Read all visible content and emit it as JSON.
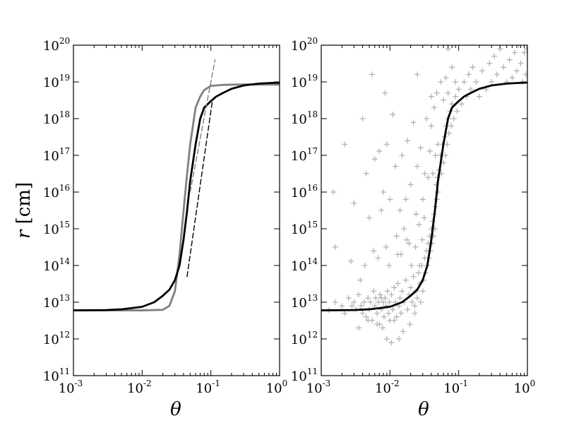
{
  "chart_data": [
    {
      "type": "line",
      "panel": "left",
      "xscale": "log",
      "yscale": "log",
      "xlim": [
        0.001,
        1
      ],
      "ylim": [
        100000000000.0,
        1e+20
      ],
      "xlabel": "θ",
      "ylabel": "r [cm]",
      "x_ticks": [
        {
          "base": "10",
          "exp": "-3"
        },
        {
          "base": "10",
          "exp": "-2"
        },
        {
          "base": "10",
          "exp": "-1"
        },
        {
          "base": "10",
          "exp": "0"
        }
      ],
      "y_ticks": [
        {
          "base": "10",
          "exp": "11"
        },
        {
          "base": "10",
          "exp": "12"
        },
        {
          "base": "10",
          "exp": "13"
        },
        {
          "base": "10",
          "exp": "14"
        },
        {
          "base": "10",
          "exp": "15"
        },
        {
          "base": "10",
          "exp": "16"
        },
        {
          "base": "10",
          "exp": "17"
        },
        {
          "base": "10",
          "exp": "18"
        },
        {
          "base": "10",
          "exp": "19"
        },
        {
          "base": "10",
          "exp": "20"
        }
      ],
      "series": [
        {
          "color": "#808080",
          "style": "solid",
          "x": [
            0.001,
            0.005,
            0.01,
            0.02,
            0.025,
            0.03,
            0.035,
            0.04,
            0.045,
            0.05,
            0.06,
            0.07,
            0.08,
            0.1,
            0.15,
            0.2,
            0.3,
            0.5,
            1.0
          ],
          "y": [
            6000000000000.0,
            6000000000000.0,
            6000000000000.0,
            6200000000000.0,
            8000000000000.0,
            20000000000000.0,
            200000000000000.0,
            3000000000000000.0,
            3e+16,
            2e+17,
            2e+18,
            4e+18,
            6e+18,
            7.8e+18,
            8.3e+18,
            8.4e+18,
            8.5e+18,
            8.5e+18,
            8.5e+18
          ]
        },
        {
          "color": "#000000",
          "style": "solid",
          "x": [
            0.001,
            0.003,
            0.005,
            0.01,
            0.015,
            0.02,
            0.025,
            0.03,
            0.035,
            0.04,
            0.045,
            0.05,
            0.06,
            0.07,
            0.08,
            0.1,
            0.12,
            0.15,
            0.2,
            0.3,
            0.5,
            0.7,
            1.0
          ],
          "y": [
            6000000000000.0,
            6100000000000.0,
            6400000000000.0,
            7500000000000.0,
            10000000000000.0,
            15000000000000.0,
            22000000000000.0,
            40000000000000.0,
            100000000000000.0,
            500000000000000.0,
            3000000000000000.0,
            2e+16,
            2e+17,
            1e+18,
            2e+18,
            3e+18,
            4e+18,
            5e+18,
            6.5e+18,
            8e+18,
            9e+18,
            9.3e+18,
            9.6e+18
          ]
        },
        {
          "color": "#808080",
          "style": "dashed",
          "x": [
            0.05,
            0.115
          ],
          "y": [
            1e+16,
            4e+19
          ]
        },
        {
          "color": "#000000",
          "style": "dashed",
          "x": [
            0.045,
            0.105
          ],
          "y": [
            50000000000000.0,
            3e+18
          ]
        }
      ]
    },
    {
      "type": "scatter",
      "panel": "right",
      "xscale": "log",
      "yscale": "log",
      "xlim": [
        0.001,
        1
      ],
      "ylim": [
        100000000000.0,
        1e+20
      ],
      "xlabel": "θ",
      "x_ticks": [
        {
          "base": "10",
          "exp": "-3"
        },
        {
          "base": "10",
          "exp": "-2"
        },
        {
          "base": "10",
          "exp": "-1"
        },
        {
          "base": "10",
          "exp": "0"
        }
      ],
      "scatter_color": "#b3b3b3",
      "scatter_marker": "+",
      "points": [
        [
          0.0013,
          6000000000000.0
        ],
        [
          0.0016,
          10000000000000.0
        ],
        [
          0.002,
          7900000000000.0
        ],
        [
          0.0022,
          5000000000000.0
        ],
        [
          0.0025,
          13000000000000.0
        ],
        [
          0.0028,
          7900000000000.0
        ],
        [
          0.003,
          10000000000000.0
        ],
        [
          0.0032,
          6300000000000.0
        ],
        [
          0.0035,
          16000000000000.0
        ],
        [
          0.0038,
          8000000000000.0
        ],
        [
          0.004,
          5000000000000.0
        ],
        [
          0.0042,
          10000000000000.0
        ],
        [
          0.0045,
          4000000000000.0
        ],
        [
          0.0048,
          13000000000000.0
        ],
        [
          0.005,
          6300000000000.0
        ],
        [
          0.0052,
          10000000000000.0
        ],
        [
          0.0055,
          3200000000000.0
        ],
        [
          0.0058,
          20000000000000.0
        ],
        [
          0.006,
          7900000000000.0
        ],
        [
          0.0062,
          13000000000000.0
        ],
        [
          0.0065,
          5000000000000.0
        ],
        [
          0.0068,
          10000000000000.0
        ],
        [
          0.007,
          2500000000000.0
        ],
        [
          0.0072,
          16000000000000.0
        ],
        [
          0.0075,
          6300000000000.0
        ],
        [
          0.0078,
          2000000000000.0
        ],
        [
          0.008,
          10000000000000.0
        ],
        [
          0.0082,
          4000000000000.0
        ],
        [
          0.0085,
          13000000000000.0
        ],
        [
          0.0088,
          7900000000000.0
        ],
        [
          0.009,
          1000000000000.0
        ],
        [
          0.0092,
          20000000000000.0
        ],
        [
          0.0095,
          5000000000000.0
        ],
        [
          0.0098,
          10000000000000.0
        ],
        [
          0.01,
          3200000000000.0
        ],
        [
          0.0105,
          16000000000000.0
        ],
        [
          0.011,
          6300000000000.0
        ],
        [
          0.0115,
          25000000000000.0
        ],
        [
          0.012,
          10000000000000.0
        ],
        [
          0.0125,
          4000000000000.0
        ],
        [
          0.013,
          32000000000000.0
        ],
        [
          0.0135,
          7900000000000.0
        ],
        [
          0.014,
          13000000000000.0
        ],
        [
          0.0145,
          5000000000000.0
        ],
        [
          0.015,
          20000000000000.0
        ],
        [
          0.016,
          10000000000000.0
        ],
        [
          0.017,
          40000000000000.0
        ],
        [
          0.018,
          6300000000000.0
        ],
        [
          0.019,
          16000000000000.0
        ],
        [
          0.02,
          25000000000000.0
        ],
        [
          0.021,
          10000000000000.0
        ],
        [
          0.022,
          50000000000000.0
        ],
        [
          0.023,
          7900000000000.0
        ],
        [
          0.024,
          20000000000000.0
        ],
        [
          0.025,
          13000000000000.0
        ],
        [
          0.026,
          63000000000000.0
        ],
        [
          0.027,
          32000000000000.0
        ],
        [
          0.028,
          10000000000000.0
        ],
        [
          0.029,
          100000000000000.0
        ],
        [
          0.03,
          20000000000000.0
        ],
        [
          0.031,
          40000000000000.0
        ],
        [
          0.032,
          160000000000000.0
        ],
        [
          0.033,
          63000000000000.0
        ],
        [
          0.034,
          250000000000000.0
        ],
        [
          0.035,
          100000000000000.0
        ],
        [
          0.036,
          400000000000000.0
        ],
        [
          0.037,
          160000000000000.0
        ],
        [
          0.038,
          630000000000000.0
        ],
        [
          0.039,
          250000000000000.0
        ],
        [
          0.04,
          1000000000000000.0
        ],
        [
          0.041,
          400000000000000.0
        ],
        [
          0.042,
          1600000000000000.0
        ],
        [
          0.043,
          630000000000000.0
        ],
        [
          0.044,
          2500000000000000.0
        ],
        [
          0.045,
          1000000000000000.0
        ],
        [
          0.046,
          4000000000000000.0
        ],
        [
          0.047,
          1.6e+16
        ],
        [
          0.048,
          6300000000000000.0
        ],
        [
          0.049,
          2.5e+16
        ],
        [
          0.05,
          1e+16
        ],
        [
          0.052,
          4e+16
        ],
        [
          0.054,
          1e+17
        ],
        [
          0.056,
          3.2e+16
        ],
        [
          0.058,
          2e+17
        ],
        [
          0.06,
          6.3e+16
        ],
        [
          0.062,
          3.2e+17
        ],
        [
          0.064,
          1e+17
        ],
        [
          0.066,
          6.3e+17
        ],
        [
          0.068,
          2e+17
        ],
        [
          0.07,
          1e+18
        ],
        [
          0.072,
          4e+17
        ],
        [
          0.075,
          1.6e+18
        ],
        [
          0.078,
          6.3e+17
        ],
        [
          0.08,
          2.5e+18
        ],
        [
          0.085,
          1e+18
        ],
        [
          0.09,
          4e+18
        ],
        [
          0.095,
          1.6e+18
        ],
        [
          0.1,
          6.3e+18
        ],
        [
          0.11,
          2.5e+18
        ],
        [
          0.12,
          1e+19
        ],
        [
          0.13,
          4e+18
        ],
        [
          0.14,
          1.6e+19
        ],
        [
          0.15,
          6.3e+18
        ],
        [
          0.16,
          2.5e+19
        ],
        [
          0.18,
          1e+19
        ],
        [
          0.2,
          4e+18
        ],
        [
          0.22,
          2e+19
        ],
        [
          0.25,
          6.3e+18
        ],
        [
          0.28,
          3.2e+19
        ],
        [
          0.3,
          1e+19
        ],
        [
          0.33,
          5e+19
        ],
        [
          0.36,
          1.6e+19
        ],
        [
          0.4,
          7.9e+19
        ],
        [
          0.45,
          2.5e+19
        ],
        [
          0.5,
          1e+19
        ],
        [
          0.55,
          4e+19
        ],
        [
          0.6,
          1.3e+19
        ],
        [
          0.65,
          6.3e+19
        ],
        [
          0.7,
          2e+19
        ],
        [
          0.75,
          1e+20
        ],
        [
          0.8,
          3.2e+19
        ],
        [
          0.85,
          1e+19
        ],
        [
          0.9,
          6.3e+19
        ],
        [
          0.95,
          1.6e+19
        ],
        [
          0.98,
          7.9e+19
        ],
        [
          0.0016,
          320000000000000.0
        ],
        [
          0.0015,
          1e+16
        ],
        [
          0.0022,
          2e+17
        ],
        [
          0.003,
          5000000000000000.0
        ],
        [
          0.004,
          1e+18
        ],
        [
          0.0045,
          3.2e+16
        ],
        [
          0.005,
          2000000000000000.0
        ],
        [
          0.006,
          7.9e+16
        ],
        [
          0.007,
          1.3e+17
        ],
        [
          0.0075,
          3200000000000000.0
        ],
        [
          0.008,
          1e+16
        ],
        [
          0.009,
          2e+17
        ],
        [
          0.01,
          6300000000000000.0
        ],
        [
          0.011,
          1.3e+18
        ],
        [
          0.012,
          5e+16
        ],
        [
          0.013,
          200000000000000.0
        ],
        [
          0.014,
          3200000000000000.0
        ],
        [
          0.015,
          1e+17
        ],
        [
          0.016,
          1000000000000000.0
        ],
        [
          0.017,
          6300000000000000.0
        ],
        [
          0.018,
          2.5e+17
        ],
        [
          0.019,
          400000000000000.0
        ],
        [
          0.02,
          1.6e+16
        ],
        [
          0.022,
          7.9e+17
        ],
        [
          0.024,
          2500000000000000.0
        ],
        [
          0.025,
          5e+16
        ],
        [
          0.027,
          100000000000000.0
        ],
        [
          0.028,
          1.6e+17
        ],
        [
          0.03,
          6300000000000000.0
        ],
        [
          0.032,
          3.2e+16
        ],
        [
          0.034,
          1e+18
        ],
        [
          0.036,
          2.5e+16
        ],
        [
          0.038,
          1.3e+17
        ],
        [
          0.04,
          6.3e+17
        ],
        [
          0.042,
          3.2e+16
        ],
        [
          0.044,
          2e+18
        ],
        [
          0.046,
          1e+17
        ],
        [
          0.048,
          5e+18
        ],
        [
          0.05,
          2e+17
        ],
        [
          0.055,
          1e+19
        ],
        [
          0.06,
          3.2e+18
        ],
        [
          0.065,
          1.3e+19
        ],
        [
          0.07,
          5e+18
        ],
        [
          0.08,
          2.5e+19
        ],
        [
          0.09,
          1e+19
        ],
        [
          0.0055,
          1.6e+19
        ],
        [
          0.0085,
          5e+18
        ],
        [
          0.025,
          1.6e+19
        ],
        [
          0.04,
          4e+18
        ],
        [
          0.07,
          7.9e+19
        ],
        [
          0.0075,
          13000000000000.0
        ],
        [
          0.0115,
          3200000000000.0
        ],
        [
          0.0135,
          1000000000000.0
        ],
        [
          0.0195,
          2500000000000.0
        ],
        [
          0.023,
          5000000000000.0
        ],
        [
          0.0035,
          2000000000000.0
        ],
        [
          0.0048,
          3200000000000.0
        ],
        [
          0.0065,
          2500000000000.0
        ],
        [
          0.0105,
          790000000000.0
        ],
        [
          0.0155,
          1600000000000.0
        ],
        [
          0.0027,
          130000000000000.0
        ],
        [
          0.0037,
          40000000000000.0
        ],
        [
          0.0043,
          100000000000000.0
        ],
        [
          0.0058,
          250000000000000.0
        ],
        [
          0.0067,
          160000000000000.0
        ],
        [
          0.0088,
          320000000000000.0
        ],
        [
          0.0097,
          100000000000000.0
        ],
        [
          0.0125,
          630000000000000.0
        ],
        [
          0.0145,
          200000000000000.0
        ],
        [
          0.0175,
          500000000000000.0
        ],
        [
          0.0205,
          100000000000000.0
        ],
        [
          0.0235,
          320000000000000.0
        ],
        [
          0.0265,
          1300000000000000.0
        ],
        [
          0.0295,
          500000000000000.0
        ],
        [
          0.0315,
          2000000000000000.0
        ]
      ],
      "series": [
        {
          "color": "#000000",
          "style": "solid",
          "x": [
            0.001,
            0.003,
            0.005,
            0.01,
            0.015,
            0.02,
            0.025,
            0.03,
            0.035,
            0.04,
            0.045,
            0.05,
            0.06,
            0.07,
            0.08,
            0.1,
            0.12,
            0.15,
            0.2,
            0.3,
            0.5,
            0.7,
            1.0
          ],
          "y": [
            6000000000000.0,
            6100000000000.0,
            6400000000000.0,
            7500000000000.0,
            10000000000000.0,
            15000000000000.0,
            22000000000000.0,
            40000000000000.0,
            100000000000000.0,
            500000000000000.0,
            3000000000000000.0,
            2e+16,
            2e+17,
            1e+18,
            2e+18,
            3e+18,
            4e+18,
            5e+18,
            6.5e+18,
            8e+18,
            9e+18,
            9.3e+18,
            9.6e+18
          ]
        }
      ]
    }
  ]
}
